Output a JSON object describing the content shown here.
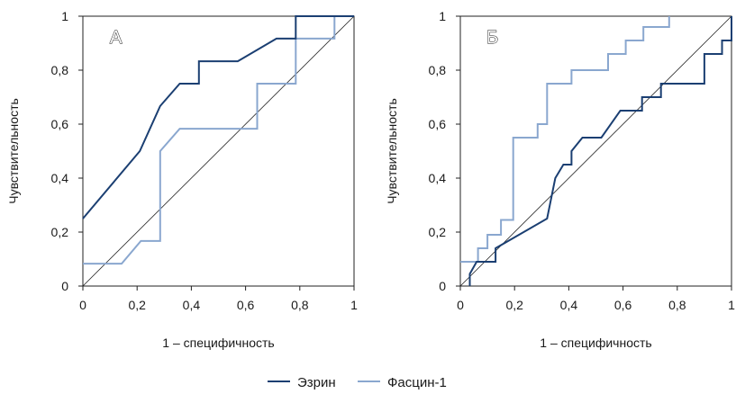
{
  "colors": {
    "ezrin": "#1b3f72",
    "fascin": "#8aa7cf",
    "diagonal": "#222222",
    "frame": "#222222"
  },
  "legend": {
    "placement": "bottom-center",
    "items": [
      "Эзрин",
      "Фасцин-1"
    ]
  },
  "chart_data": [
    {
      "type": "line",
      "panel_label": "А",
      "xlabel": "1 – специфичность",
      "ylabel": "Чувствительность",
      "xlim": [
        0,
        1
      ],
      "ylim": [
        0,
        1
      ],
      "xticks": [
        "0",
        "0,2",
        "0,4",
        "0,6",
        "0,8",
        "1"
      ],
      "yticks": [
        "0",
        "0,2",
        "0,4",
        "0,6",
        "0,8",
        "1"
      ],
      "grid": false,
      "reference_line": [
        [
          0,
          0
        ],
        [
          1,
          1
        ]
      ],
      "series": [
        {
          "name": "Эзрин",
          "x": [
            0,
            0.21,
            0.285,
            0.357,
            0.428,
            0.428,
            0.571,
            0.714,
            0.785,
            0.785,
            1
          ],
          "y": [
            0.25,
            0.5,
            0.667,
            0.75,
            0.75,
            0.833,
            0.833,
            0.917,
            0.917,
            1,
            1
          ]
        },
        {
          "name": "Фасцин-1",
          "x": [
            0,
            0.143,
            0.214,
            0.285,
            0.285,
            0.357,
            0.643,
            0.643,
            0.785,
            0.785,
            0.928,
            0.928,
            1
          ],
          "y": [
            0.083,
            0.083,
            0.167,
            0.167,
            0.5,
            0.583,
            0.583,
            0.75,
            0.75,
            0.917,
            0.917,
            1,
            1
          ]
        }
      ]
    },
    {
      "type": "line",
      "panel_label": "Б",
      "xlabel": "1 – специфичность",
      "ylabel": "Чувствительность",
      "xlim": [
        0,
        1
      ],
      "ylim": [
        0,
        1
      ],
      "xticks": [
        "0",
        "0,2",
        "0,4",
        "0,6",
        "0,8",
        "1"
      ],
      "yticks": [
        "0",
        "0,2",
        "0,4",
        "0,6",
        "0,8",
        "1"
      ],
      "grid": false,
      "reference_line": [
        [
          0,
          0
        ],
        [
          1,
          1
        ]
      ],
      "series": [
        {
          "name": "Эзрин",
          "x": [
            0.035,
            0.035,
            0.06,
            0.06,
            0.13,
            0.13,
            0.32,
            0.35,
            0.38,
            0.38,
            0.41,
            0.41,
            0.45,
            0.45,
            0.52,
            0.59,
            0.67,
            0.67,
            0.74,
            0.74,
            0.9,
            0.9,
            0.965,
            0.965,
            1,
            1
          ],
          "y": [
            0,
            0.045,
            0.09,
            0.09,
            0.09,
            0.14,
            0.25,
            0.4,
            0.45,
            0.45,
            0.45,
            0.5,
            0.55,
            0.55,
            0.55,
            0.65,
            0.65,
            0.7,
            0.7,
            0.75,
            0.75,
            0.86,
            0.86,
            0.91,
            0.91,
            1
          ]
        },
        {
          "name": "Фасцин-1",
          "x": [
            0,
            0.065,
            0.065,
            0.1,
            0.1,
            0.15,
            0.15,
            0.195,
            0.195,
            0.285,
            0.285,
            0.32,
            0.32,
            0.41,
            0.41,
            0.545,
            0.545,
            0.61,
            0.61,
            0.675,
            0.675,
            0.77,
            0.77
          ],
          "y": [
            0.09,
            0.09,
            0.14,
            0.14,
            0.19,
            0.19,
            0.245,
            0.245,
            0.55,
            0.55,
            0.6,
            0.6,
            0.75,
            0.75,
            0.8,
            0.8,
            0.86,
            0.86,
            0.91,
            0.91,
            0.96,
            0.96,
            1
          ]
        }
      ]
    }
  ]
}
